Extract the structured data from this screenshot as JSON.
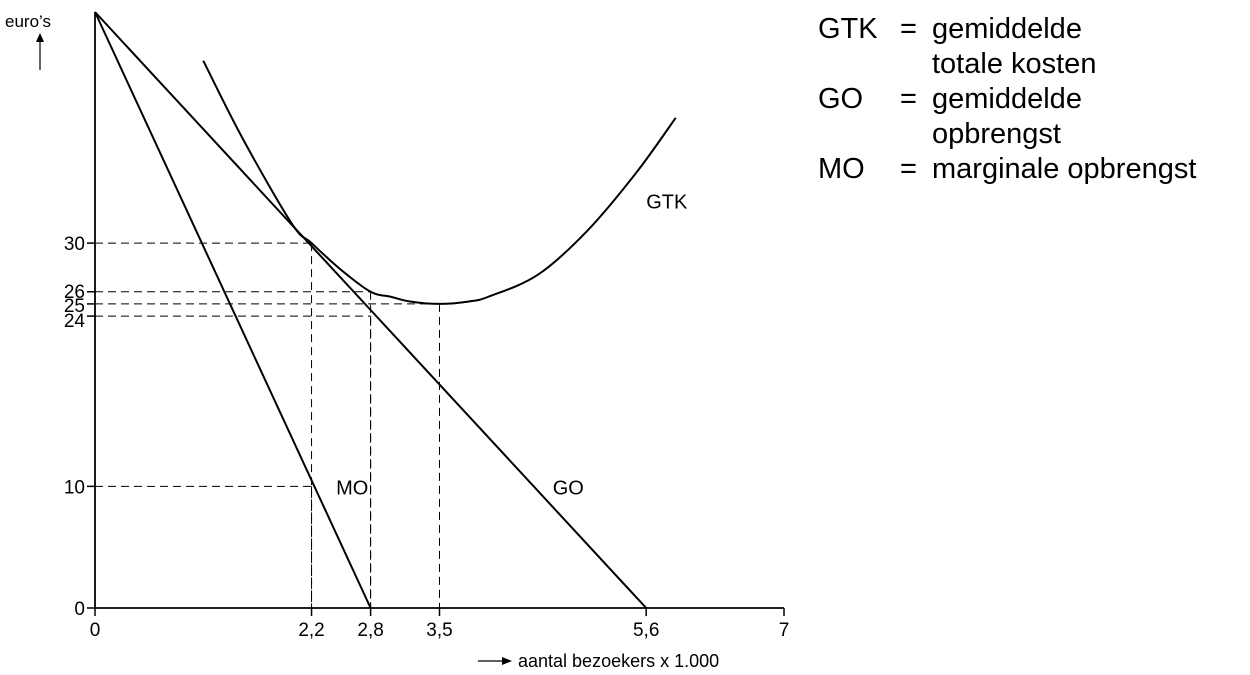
{
  "chart_data": {
    "type": "line",
    "ylabel": "euro’s",
    "xlabel": "aantal bezoekers x 1.000",
    "xlim": [
      0,
      7
    ],
    "ylim": [
      0,
      49
    ],
    "x_ticks": [
      "0",
      "2,2",
      "2,8",
      "3,5",
      "5,6",
      "7"
    ],
    "x_tick_values": [
      0,
      2.2,
      2.8,
      3.5,
      5.6,
      7
    ],
    "y_ticks": [
      "0",
      "10",
      "24",
      "25",
      "26",
      "30"
    ],
    "y_tick_values": [
      0,
      10,
      24,
      25,
      26,
      30
    ],
    "series": [
      {
        "name": "GO",
        "label_at": [
          4.65,
          10
        ],
        "x": [
          0,
          5.6
        ],
        "y": [
          49,
          0
        ]
      },
      {
        "name": "MO",
        "label_at": [
          2.45,
          10
        ],
        "x": [
          0,
          2.8
        ],
        "y": [
          49,
          0
        ]
      },
      {
        "name": "GTK",
        "label_at": [
          5.6,
          33.5
        ],
        "x": [
          1.1,
          1.5,
          2.0,
          2.2,
          2.5,
          2.8,
          3.0,
          3.2,
          3.5,
          3.8,
          4.0,
          4.5,
          5.0,
          5.5,
          5.9
        ],
        "y": [
          45,
          38.6,
          31.6,
          30,
          27.8,
          26.0,
          25.6,
          25.2,
          25.0,
          25.2,
          25.6,
          27.4,
          31.0,
          35.8,
          40.3
        ]
      }
    ],
    "guides": [
      {
        "x": 2.2,
        "y": 30
      },
      {
        "x": 2.8,
        "y": 26
      },
      {
        "x": 2.8,
        "y": 24
      },
      {
        "x": 3.5,
        "y": 25
      },
      {
        "x": 2.2,
        "y": 10
      }
    ]
  },
  "legend": [
    {
      "abbr": "GTK",
      "eq": "=",
      "desc": "gemiddelde totale kosten"
    },
    {
      "abbr": "GO",
      "eq": "=",
      "desc": "gemiddelde opbrengst"
    },
    {
      "abbr": "MO",
      "eq": "=",
      "desc": "marginale opbrengst"
    }
  ]
}
